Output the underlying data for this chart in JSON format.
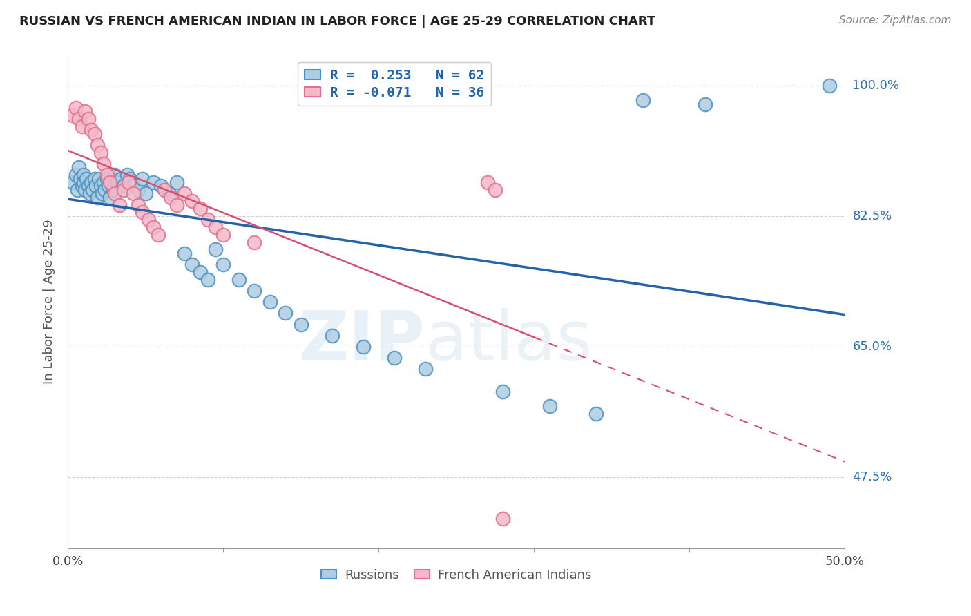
{
  "title": "RUSSIAN VS FRENCH AMERICAN INDIAN IN LABOR FORCE | AGE 25-29 CORRELATION CHART",
  "source": "Source: ZipAtlas.com",
  "ylabel": "In Labor Force | Age 25-29",
  "ytick_labels": [
    "100.0%",
    "82.5%",
    "65.0%",
    "47.5%"
  ],
  "ytick_values": [
    1.0,
    0.825,
    0.65,
    0.475
  ],
  "xlim": [
    0.0,
    0.5
  ],
  "ylim": [
    0.38,
    1.04
  ],
  "legend_blue": "R =  0.253   N = 62",
  "legend_pink": "R = -0.071   N = 36",
  "blue_color": "#aecde1",
  "pink_color": "#f4b8c8",
  "blue_edge_color": "#4a90c4",
  "pink_edge_color": "#e07090",
  "blue_line_color": "#2563a8",
  "pink_line_color": "#d45070",
  "watermark_zip": "ZIP",
  "watermark_atlas": "atlas",
  "russians_x": [
    0.003,
    0.005,
    0.006,
    0.007,
    0.008,
    0.009,
    0.01,
    0.01,
    0.011,
    0.012,
    0.013,
    0.014,
    0.015,
    0.016,
    0.017,
    0.018,
    0.019,
    0.02,
    0.021,
    0.022,
    0.023,
    0.024,
    0.025,
    0.026,
    0.027,
    0.028,
    0.029,
    0.03,
    0.032,
    0.034,
    0.036,
    0.038,
    0.04,
    0.042,
    0.045,
    0.048,
    0.05,
    0.055,
    0.06,
    0.065,
    0.07,
    0.075,
    0.08,
    0.085,
    0.09,
    0.095,
    0.1,
    0.11,
    0.12,
    0.13,
    0.14,
    0.15,
    0.17,
    0.19,
    0.21,
    0.23,
    0.28,
    0.31,
    0.34,
    0.37,
    0.41,
    0.49
  ],
  "russians_y": [
    0.87,
    0.88,
    0.86,
    0.89,
    0.875,
    0.865,
    0.88,
    0.87,
    0.86,
    0.875,
    0.865,
    0.855,
    0.87,
    0.86,
    0.875,
    0.865,
    0.85,
    0.875,
    0.865,
    0.855,
    0.87,
    0.86,
    0.875,
    0.865,
    0.85,
    0.87,
    0.86,
    0.88,
    0.87,
    0.875,
    0.865,
    0.88,
    0.875,
    0.865,
    0.86,
    0.875,
    0.855,
    0.87,
    0.865,
    0.855,
    0.87,
    0.775,
    0.76,
    0.75,
    0.74,
    0.78,
    0.76,
    0.74,
    0.725,
    0.71,
    0.695,
    0.68,
    0.665,
    0.65,
    0.635,
    0.62,
    0.59,
    0.57,
    0.56,
    0.98,
    0.975,
    1.0
  ],
  "french_x": [
    0.003,
    0.005,
    0.007,
    0.009,
    0.011,
    0.013,
    0.015,
    0.017,
    0.019,
    0.021,
    0.023,
    0.025,
    0.027,
    0.03,
    0.033,
    0.036,
    0.039,
    0.042,
    0.045,
    0.048,
    0.052,
    0.055,
    0.058,
    0.062,
    0.066,
    0.07,
    0.075,
    0.08,
    0.085,
    0.09,
    0.095,
    0.1,
    0.12,
    0.27,
    0.275,
    0.28
  ],
  "french_y": [
    0.96,
    0.97,
    0.955,
    0.945,
    0.965,
    0.955,
    0.94,
    0.935,
    0.92,
    0.91,
    0.895,
    0.88,
    0.87,
    0.855,
    0.84,
    0.86,
    0.87,
    0.855,
    0.84,
    0.83,
    0.82,
    0.81,
    0.8,
    0.86,
    0.85,
    0.84,
    0.855,
    0.845,
    0.835,
    0.82,
    0.81,
    0.8,
    0.79,
    0.87,
    0.86,
    0.42
  ]
}
